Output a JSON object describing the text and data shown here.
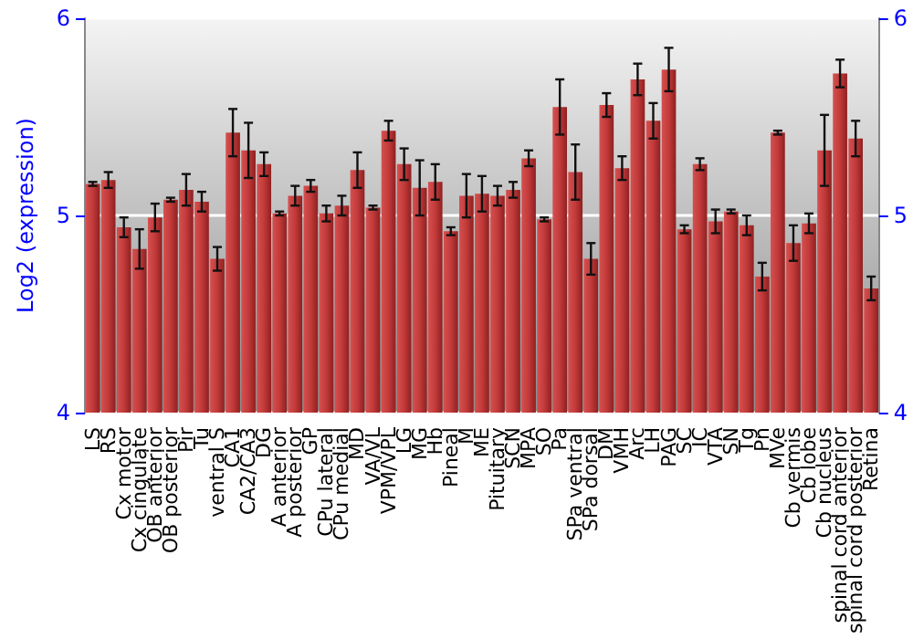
{
  "chart_data": {
    "type": "bar",
    "ylabel": "Log2 (expression)",
    "categories": [
      "LS",
      "RS",
      "Cx motor",
      "Cx cingulate",
      "OB anterior",
      "OB posterior",
      "Pir",
      "Tu",
      "ventral S",
      "CA1",
      "CA2/CA3",
      "DG",
      "A anterior",
      "A posterior",
      "GP",
      "CPu lateral",
      "CPu medial",
      "MD",
      "VA/VL",
      "VPM/VPL",
      "LG",
      "MG",
      "Hb",
      "Pineal",
      "M",
      "ME",
      "Pituitary",
      "SCN",
      "MPA",
      "SO",
      "Pa",
      "SPa ventral",
      "SPa dorsal",
      "DM",
      "VMH",
      "Arc",
      "LH",
      "PAG",
      "SC",
      "IC",
      "VTA",
      "SN",
      "Tg",
      "Pn",
      "MVe",
      "Cb vermis",
      "Cb lobe",
      "Cb nucleus",
      "spinal cord anterior",
      "spinal cord posterior",
      "Retina"
    ],
    "values": [
      5.16,
      5.18,
      4.94,
      4.83,
      4.99,
      5.08,
      5.13,
      5.07,
      4.78,
      5.42,
      5.33,
      5.26,
      5.01,
      5.1,
      5.15,
      5.01,
      5.05,
      5.23,
      5.04,
      5.43,
      5.26,
      5.14,
      5.17,
      4.92,
      5.1,
      5.11,
      5.1,
      5.13,
      5.29,
      4.98,
      5.55,
      5.22,
      4.78,
      5.56,
      5.24,
      5.69,
      5.48,
      5.74,
      4.93,
      5.26,
      4.97,
      5.02,
      4.95,
      4.69,
      5.42,
      4.86,
      4.96,
      5.33,
      5.72,
      5.39,
      4.63
    ],
    "errors": [
      0.01,
      0.04,
      0.05,
      0.1,
      0.07,
      0.01,
      0.08,
      0.05,
      0.06,
      0.12,
      0.14,
      0.06,
      0.01,
      0.05,
      0.03,
      0.04,
      0.05,
      0.09,
      0.01,
      0.05,
      0.08,
      0.14,
      0.09,
      0.02,
      0.11,
      0.09,
      0.05,
      0.04,
      0.04,
      0.01,
      0.14,
      0.14,
      0.08,
      0.06,
      0.06,
      0.08,
      0.09,
      0.11,
      0.02,
      0.03,
      0.06,
      0.01,
      0.05,
      0.07,
      0.01,
      0.09,
      0.05,
      0.18,
      0.07,
      0.09,
      0.06
    ],
    "color": "#c23a3a",
    "ylim": [
      4,
      6
    ],
    "yticks": [
      4,
      5,
      6
    ],
    "y2lim": [
      4,
      6
    ],
    "y2ticks": [
      4,
      5,
      6
    ],
    "grid": "y"
  }
}
